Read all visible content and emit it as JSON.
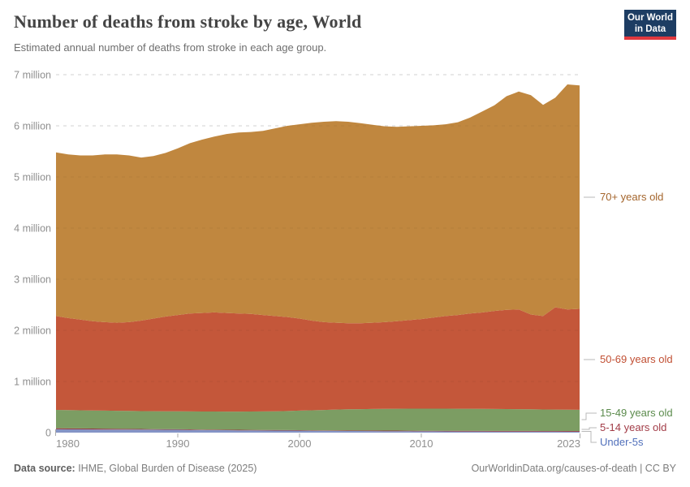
{
  "header": {
    "title": "Number of deaths from stroke by age, World",
    "subtitle": "Estimated annual number of deaths from stroke in each age group.",
    "logo": {
      "line1": "Our World",
      "line2": "in Data",
      "bg": "#1d3d63",
      "bar": "#e0383e"
    }
  },
  "footer": {
    "source_label": "Data source:",
    "source_text": " IHME, Global Burden of Disease (2025)",
    "credit": "OurWorldinData.org/causes-of-death | CC BY"
  },
  "chart_data": {
    "type": "area",
    "stacked": true,
    "title": "Number of deaths from stroke by age, World",
    "unit": "deaths (millions)",
    "xlabel": "",
    "ylabel": "",
    "xlim": [
      1980,
      2023
    ],
    "ylim": [
      0,
      7
    ],
    "grid": "dashed",
    "legend_position": "right-edge-labels",
    "x": [
      1980,
      1981,
      1982,
      1983,
      1984,
      1985,
      1986,
      1987,
      1988,
      1989,
      1990,
      1991,
      1992,
      1993,
      1994,
      1995,
      1996,
      1997,
      1998,
      1999,
      2000,
      2001,
      2002,
      2003,
      2004,
      2005,
      2006,
      2007,
      2008,
      2009,
      2010,
      2011,
      2012,
      2013,
      2014,
      2015,
      2016,
      2017,
      2018,
      2019,
      2020,
      2021,
      2022,
      2023
    ],
    "y_ticks": [
      {
        "v": 0,
        "label": "0"
      },
      {
        "v": 1,
        "label": "1 million"
      },
      {
        "v": 2,
        "label": "2 million"
      },
      {
        "v": 3,
        "label": "3 million"
      },
      {
        "v": 4,
        "label": "4 million"
      },
      {
        "v": 5,
        "label": "5 million"
      },
      {
        "v": 6,
        "label": "6 million"
      },
      {
        "v": 7,
        "label": "7 million"
      }
    ],
    "x_ticks": [
      {
        "year": 1980,
        "label": "1980",
        "anchor": "start"
      },
      {
        "year": 1990,
        "label": "1990",
        "anchor": "middle"
      },
      {
        "year": 2000,
        "label": "2000",
        "anchor": "middle"
      },
      {
        "year": 2010,
        "label": "2010",
        "anchor": "middle"
      },
      {
        "year": 2023,
        "label": "2023",
        "anchor": "end"
      }
    ],
    "series": [
      {
        "name": "Under-5s",
        "color": "#8494c6",
        "label_color": "#5170bb",
        "values": [
          0.065,
          0.064,
          0.063,
          0.062,
          0.061,
          0.06,
          0.059,
          0.058,
          0.057,
          0.056,
          0.055,
          0.053,
          0.051,
          0.049,
          0.047,
          0.045,
          0.043,
          0.042,
          0.04,
          0.039,
          0.038,
          0.036,
          0.035,
          0.034,
          0.032,
          0.031,
          0.03,
          0.029,
          0.028,
          0.027,
          0.026,
          0.025,
          0.024,
          0.023,
          0.022,
          0.022,
          0.021,
          0.021,
          0.02,
          0.02,
          0.019,
          0.019,
          0.018,
          0.018
        ]
      },
      {
        "name": "5-14 years old",
        "color": "#94383f",
        "label_color": "#a23c47",
        "values": [
          0.02,
          0.019,
          0.018,
          0.017,
          0.016,
          0.015,
          0.014,
          0.013,
          0.012,
          0.011,
          0.01,
          0.01,
          0.01,
          0.01,
          0.01,
          0.01,
          0.011,
          0.01,
          0.011,
          0.01,
          0.01,
          0.01,
          0.01,
          0.01,
          0.011,
          0.011,
          0.011,
          0.011,
          0.011,
          0.011,
          0.011,
          0.011,
          0.012,
          0.012,
          0.013,
          0.012,
          0.013,
          0.012,
          0.013,
          0.013,
          0.013,
          0.013,
          0.014,
          0.014
        ]
      },
      {
        "name": "15-49 years old",
        "color": "#7c9d63",
        "label_color": "#5b8b4c",
        "values": [
          0.36,
          0.357,
          0.356,
          0.354,
          0.353,
          0.352,
          0.351,
          0.35,
          0.35,
          0.35,
          0.351,
          0.351,
          0.352,
          0.353,
          0.354,
          0.356,
          0.358,
          0.362,
          0.367,
          0.374,
          0.382,
          0.391,
          0.398,
          0.406,
          0.412,
          0.417,
          0.421,
          0.425,
          0.428,
          0.43,
          0.432,
          0.433,
          0.432,
          0.432,
          0.431,
          0.43,
          0.428,
          0.427,
          0.425,
          0.422,
          0.42,
          0.418,
          0.416,
          0.414
        ]
      },
      {
        "name": "50-69 years old",
        "color": "#c4573a",
        "label_color": "#c14f33",
        "values": [
          1.835,
          1.8,
          1.773,
          1.747,
          1.73,
          1.723,
          1.736,
          1.769,
          1.811,
          1.853,
          1.884,
          1.916,
          1.927,
          1.938,
          1.929,
          1.919,
          1.908,
          1.886,
          1.862,
          1.837,
          1.8,
          1.753,
          1.717,
          1.7,
          1.685,
          1.681,
          1.688,
          1.695,
          1.713,
          1.732,
          1.751,
          1.781,
          1.812,
          1.833,
          1.864,
          1.886,
          1.918,
          1.94,
          1.952,
          1.855,
          1.828,
          2.0,
          1.962,
          1.974
        ]
      },
      {
        "name": "70+ years old",
        "color": "#c0873f",
        "label_color": "#a4652c",
        "values": [
          3.2,
          3.2,
          3.21,
          3.24,
          3.28,
          3.29,
          3.26,
          3.19,
          3.18,
          3.2,
          3.26,
          3.33,
          3.39,
          3.44,
          3.5,
          3.54,
          3.56,
          3.6,
          3.67,
          3.74,
          3.8,
          3.87,
          3.92,
          3.94,
          3.94,
          3.91,
          3.87,
          3.83,
          3.8,
          3.79,
          3.78,
          3.76,
          3.75,
          3.77,
          3.83,
          3.93,
          4.02,
          4.18,
          4.26,
          4.29,
          4.13,
          4.1,
          4.4,
          4.37
        ]
      }
    ]
  }
}
